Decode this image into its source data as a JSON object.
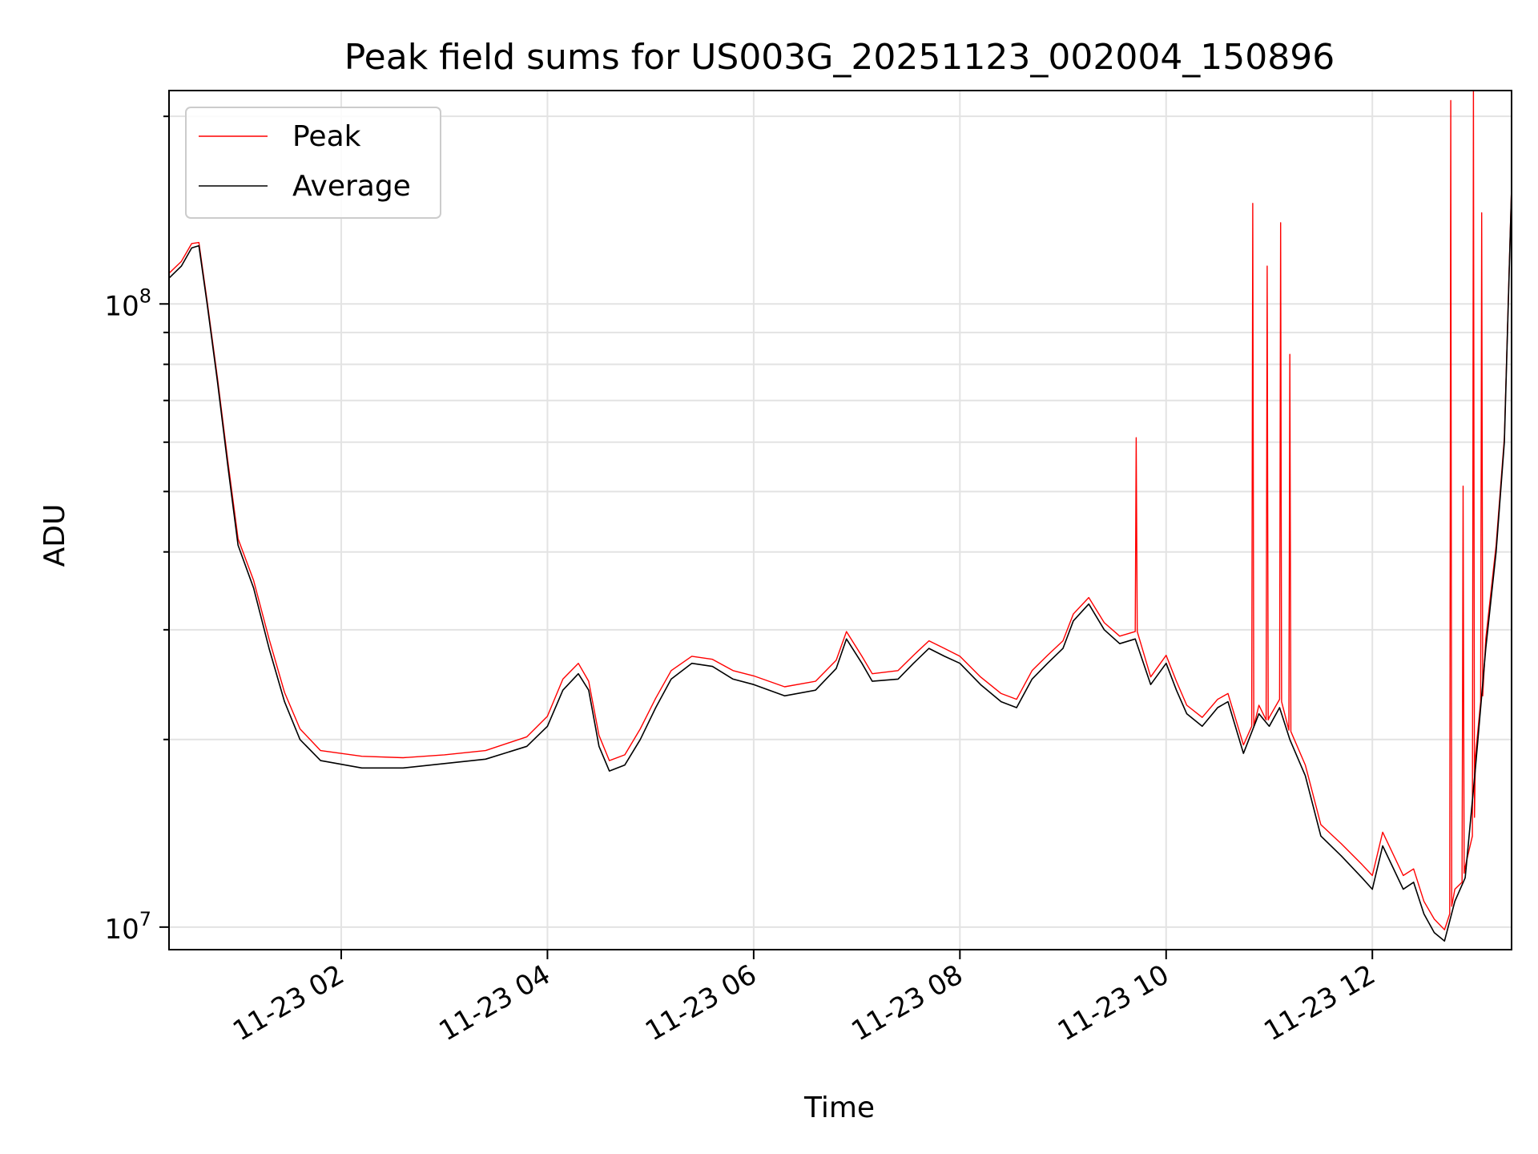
{
  "chart_data": {
    "type": "line",
    "title": "Peak field sums for US003G_20251123_002004_150896",
    "xlabel": "Time",
    "ylabel": "ADU",
    "x_unit": "hours (2025-11-23)",
    "xlim": [
      0.33,
      13.35
    ],
    "ylim": [
      9200000,
      220000000
    ],
    "yscale": "log",
    "grid": true,
    "legend_position": "top-left",
    "x_ticks": [
      {
        "value": 2,
        "label": "11-23 02"
      },
      {
        "value": 4,
        "label": "11-23 04"
      },
      {
        "value": 6,
        "label": "11-23 06"
      },
      {
        "value": 8,
        "label": "11-23 08"
      },
      {
        "value": 10,
        "label": "11-23 10"
      },
      {
        "value": 12,
        "label": "11-23 12"
      }
    ],
    "y_ticks": [
      {
        "value": 10000000,
        "label_base": "10",
        "label_exp": "7"
      },
      {
        "value": 100000000,
        "label_base": "10",
        "label_exp": "8"
      }
    ],
    "series": [
      {
        "name": "Average",
        "color": "#000000",
        "points": [
          [
            0.33,
            110000000
          ],
          [
            0.45,
            115000000
          ],
          [
            0.55,
            123000000
          ],
          [
            0.62,
            124000000
          ],
          [
            0.7,
            100000000
          ],
          [
            0.8,
            75000000
          ],
          [
            0.9,
            55000000
          ],
          [
            1.0,
            41000000
          ],
          [
            1.15,
            35000000
          ],
          [
            1.3,
            28000000
          ],
          [
            1.45,
            23000000
          ],
          [
            1.6,
            20000000
          ],
          [
            1.8,
            18500000
          ],
          [
            2.2,
            18000000
          ],
          [
            2.6,
            18000000
          ],
          [
            3.0,
            18300000
          ],
          [
            3.4,
            18600000
          ],
          [
            3.8,
            19500000
          ],
          [
            4.0,
            21000000
          ],
          [
            4.15,
            24000000
          ],
          [
            4.3,
            25500000
          ],
          [
            4.4,
            24000000
          ],
          [
            4.5,
            19500000
          ],
          [
            4.6,
            17800000
          ],
          [
            4.75,
            18200000
          ],
          [
            4.9,
            20000000
          ],
          [
            5.05,
            22500000
          ],
          [
            5.2,
            25000000
          ],
          [
            5.4,
            26500000
          ],
          [
            5.6,
            26200000
          ],
          [
            5.8,
            25000000
          ],
          [
            6.0,
            24500000
          ],
          [
            6.3,
            23500000
          ],
          [
            6.6,
            24000000
          ],
          [
            6.8,
            26000000
          ],
          [
            6.9,
            29000000
          ],
          [
            7.05,
            26500000
          ],
          [
            7.15,
            24800000
          ],
          [
            7.4,
            25000000
          ],
          [
            7.55,
            26500000
          ],
          [
            7.7,
            28000000
          ],
          [
            7.85,
            27200000
          ],
          [
            8.0,
            26500000
          ],
          [
            8.2,
            24500000
          ],
          [
            8.4,
            23000000
          ],
          [
            8.55,
            22500000
          ],
          [
            8.7,
            25000000
          ],
          [
            8.85,
            26500000
          ],
          [
            9.0,
            28000000
          ],
          [
            9.1,
            31000000
          ],
          [
            9.25,
            33000000
          ],
          [
            9.4,
            30000000
          ],
          [
            9.55,
            28500000
          ],
          [
            9.7,
            29000000
          ],
          [
            9.85,
            24500000
          ],
          [
            10.0,
            26500000
          ],
          [
            10.1,
            24000000
          ],
          [
            10.2,
            22000000
          ],
          [
            10.35,
            21000000
          ],
          [
            10.5,
            22500000
          ],
          [
            10.6,
            23000000
          ],
          [
            10.75,
            19000000
          ],
          [
            10.9,
            22000000
          ],
          [
            11.0,
            21000000
          ],
          [
            11.1,
            22500000
          ],
          [
            11.2,
            20000000
          ],
          [
            11.35,
            17500000
          ],
          [
            11.5,
            14000000
          ],
          [
            11.7,
            13000000
          ],
          [
            11.9,
            12000000
          ],
          [
            12.0,
            11500000
          ],
          [
            12.1,
            13500000
          ],
          [
            12.3,
            11500000
          ],
          [
            12.4,
            11800000
          ],
          [
            12.5,
            10500000
          ],
          [
            12.6,
            9800000
          ],
          [
            12.7,
            9500000
          ],
          [
            12.8,
            11000000
          ],
          [
            12.9,
            12000000
          ],
          [
            13.0,
            18000000
          ],
          [
            13.1,
            28000000
          ],
          [
            13.2,
            40000000
          ],
          [
            13.28,
            60000000
          ],
          [
            13.35,
            153000000
          ]
        ]
      },
      {
        "name": "Peak",
        "color": "#ff0000",
        "points": [
          [
            0.33,
            112000000
          ],
          [
            0.45,
            117000000
          ],
          [
            0.55,
            125000000
          ],
          [
            0.62,
            125500000
          ],
          [
            0.7,
            101000000
          ],
          [
            0.8,
            76000000
          ],
          [
            0.9,
            56000000
          ],
          [
            1.0,
            42000000
          ],
          [
            1.15,
            36000000
          ],
          [
            1.3,
            29000000
          ],
          [
            1.45,
            23800000
          ],
          [
            1.6,
            20800000
          ],
          [
            1.8,
            19200000
          ],
          [
            2.2,
            18800000
          ],
          [
            2.6,
            18700000
          ],
          [
            3.0,
            18900000
          ],
          [
            3.4,
            19200000
          ],
          [
            3.8,
            20200000
          ],
          [
            4.0,
            21800000
          ],
          [
            4.15,
            25000000
          ],
          [
            4.3,
            26500000
          ],
          [
            4.4,
            24800000
          ],
          [
            4.5,
            20300000
          ],
          [
            4.6,
            18500000
          ],
          [
            4.75,
            18900000
          ],
          [
            4.9,
            20800000
          ],
          [
            5.05,
            23300000
          ],
          [
            5.2,
            25800000
          ],
          [
            5.4,
            27200000
          ],
          [
            5.6,
            26900000
          ],
          [
            5.8,
            25800000
          ],
          [
            6.0,
            25300000
          ],
          [
            6.3,
            24300000
          ],
          [
            6.6,
            24800000
          ],
          [
            6.8,
            26800000
          ],
          [
            6.9,
            29800000
          ],
          [
            7.05,
            27200000
          ],
          [
            7.15,
            25500000
          ],
          [
            7.4,
            25800000
          ],
          [
            7.55,
            27300000
          ],
          [
            7.7,
            28800000
          ],
          [
            7.85,
            28000000
          ],
          [
            8.0,
            27200000
          ],
          [
            8.2,
            25200000
          ],
          [
            8.4,
            23700000
          ],
          [
            8.55,
            23200000
          ],
          [
            8.7,
            25800000
          ],
          [
            8.85,
            27300000
          ],
          [
            9.0,
            28800000
          ],
          [
            9.1,
            31800000
          ],
          [
            9.25,
            33800000
          ],
          [
            9.4,
            30800000
          ],
          [
            9.55,
            29300000
          ],
          [
            9.7,
            29800000
          ],
          [
            9.71,
            61000000
          ],
          [
            9.72,
            29800000
          ],
          [
            9.85,
            25200000
          ],
          [
            10.0,
            27300000
          ],
          [
            10.1,
            24800000
          ],
          [
            10.2,
            22700000
          ],
          [
            10.35,
            21700000
          ],
          [
            10.5,
            23200000
          ],
          [
            10.6,
            23700000
          ],
          [
            10.75,
            19600000
          ],
          [
            10.83,
            21000000
          ],
          [
            10.84,
            145000000
          ],
          [
            10.85,
            21000000
          ],
          [
            10.9,
            22700000
          ],
          [
            10.97,
            21500000
          ],
          [
            10.98,
            115000000
          ],
          [
            10.99,
            21500000
          ],
          [
            11.0,
            21700000
          ],
          [
            11.1,
            23200000
          ],
          [
            11.11,
            135000000
          ],
          [
            11.12,
            23000000
          ],
          [
            11.19,
            20700000
          ],
          [
            11.2,
            83000000
          ],
          [
            11.21,
            20600000
          ],
          [
            11.35,
            18200000
          ],
          [
            11.5,
            14600000
          ],
          [
            11.7,
            13600000
          ],
          [
            11.9,
            12600000
          ],
          [
            12.0,
            12100000
          ],
          [
            12.1,
            14200000
          ],
          [
            12.3,
            12100000
          ],
          [
            12.4,
            12400000
          ],
          [
            12.5,
            11000000
          ],
          [
            12.6,
            10300000
          ],
          [
            12.7,
            9900000
          ],
          [
            12.75,
            10500000
          ],
          [
            12.76,
            212000000
          ],
          [
            12.77,
            10800000
          ],
          [
            12.8,
            11500000
          ],
          [
            12.87,
            11800000
          ],
          [
            12.88,
            51000000
          ],
          [
            12.89,
            12200000
          ],
          [
            12.9,
            12500000
          ],
          [
            12.97,
            14000000
          ],
          [
            12.98,
            220000000
          ],
          [
            12.99,
            15000000
          ],
          [
            13.0,
            18800000
          ],
          [
            13.05,
            23000000
          ],
          [
            13.06,
            140000000
          ],
          [
            13.07,
            23500000
          ],
          [
            13.1,
            29000000
          ],
          [
            13.2,
            41000000
          ],
          [
            13.28,
            61000000
          ],
          [
            13.35,
            155000000
          ]
        ]
      }
    ]
  }
}
